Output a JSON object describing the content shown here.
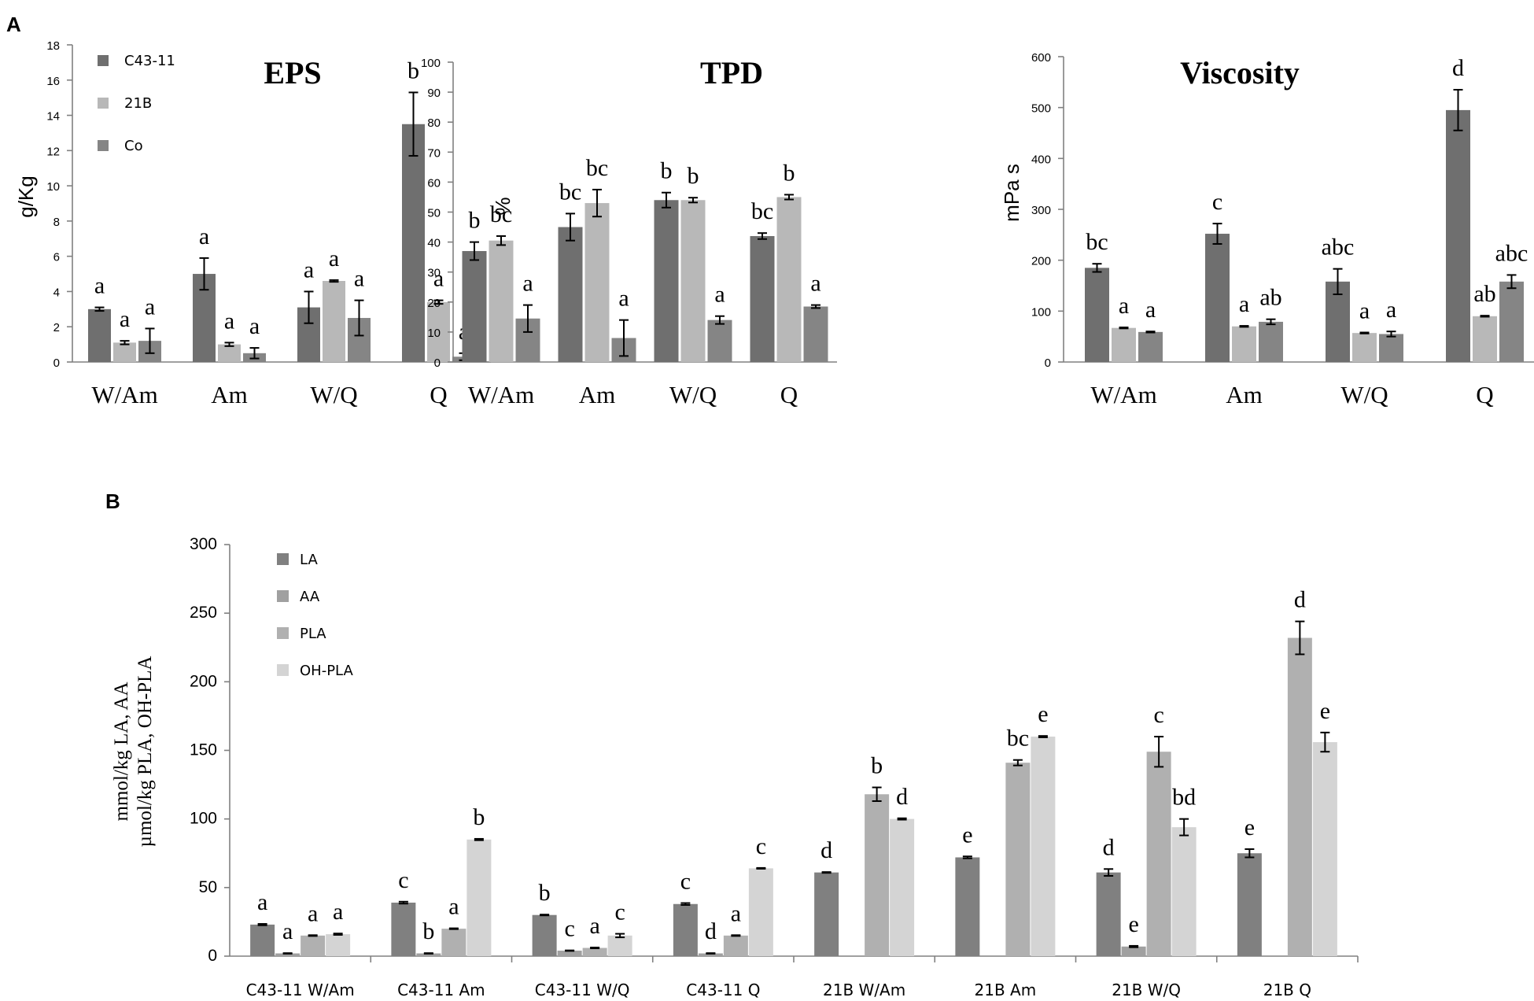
{
  "panel_labels": {
    "a": "A",
    "b": "B"
  },
  "colors": {
    "C43-11": "#6f6f6f",
    "21B": "#b8b8b8",
    "Co": "#858585",
    "LA": "#808080",
    "AA": "#a0a0a0",
    "PLA": "#b0b0b0",
    "OH-PLA": "#d4d4d4"
  },
  "chart_data": [
    {
      "type": "bar",
      "id": "eps",
      "title": "EPS",
      "ylabel": "g/Kg",
      "ylim": [
        0,
        18
      ],
      "yticks": [
        "0",
        "2",
        "4",
        "6",
        "8",
        "10",
        "12",
        "14",
        "16",
        "18"
      ],
      "categories": [
        "W/Am",
        "Am",
        "W/Q",
        "Q"
      ],
      "legend": [
        "C43-11",
        "21B",
        "Co"
      ],
      "series": [
        {
          "name": "C43-11",
          "values": [
            3.0,
            5.0,
            3.1,
            13.5
          ],
          "errors": [
            0.1,
            0.9,
            0.9,
            1.8
          ],
          "letters": [
            "a",
            "a",
            "a",
            "b"
          ]
        },
        {
          "name": "21B",
          "values": [
            1.1,
            1.0,
            4.6,
            3.4
          ],
          "errors": [
            0.1,
            0.1,
            0.05,
            0.1
          ],
          "letters": [
            "a",
            "a",
            "a",
            "a"
          ]
        },
        {
          "name": "Co",
          "values": [
            1.2,
            0.5,
            2.5,
            0.3
          ],
          "errors": [
            0.7,
            0.3,
            1.0,
            0.2
          ],
          "letters": [
            "a",
            "a",
            "a",
            "a"
          ]
        }
      ]
    },
    {
      "type": "bar",
      "id": "tpd",
      "title": "TPD",
      "ylabel": "%",
      "ylim": [
        0,
        100
      ],
      "yticks": [
        "0",
        "10",
        "20",
        "30",
        "40",
        "50",
        "60",
        "70",
        "80",
        "90",
        "100"
      ],
      "categories": [
        "W/Am",
        "Am",
        "W/Q",
        "Q"
      ],
      "series": [
        {
          "name": "C43-11",
          "values": [
            37,
            45,
            54,
            42
          ],
          "errors": [
            3,
            4.5,
            2.5,
            1
          ],
          "letters": [
            "b",
            "bc",
            "b",
            "bc"
          ]
        },
        {
          "name": "21B",
          "values": [
            40.5,
            53,
            54,
            55
          ],
          "errors": [
            1.5,
            4.5,
            0.8,
            0.8
          ],
          "letters": [
            "bc",
            "bc",
            "b",
            "b"
          ]
        },
        {
          "name": "Co",
          "values": [
            14.5,
            8,
            14,
            18.5
          ],
          "errors": [
            4.5,
            6,
            1.3,
            0.5
          ],
          "letters": [
            "a",
            "a",
            "a",
            "a"
          ]
        }
      ]
    },
    {
      "type": "bar",
      "id": "viscosity",
      "title": "Viscosity",
      "ylabel": "mPa s",
      "ylim": [
        0,
        600
      ],
      "yticks": [
        "0",
        "100",
        "200",
        "300",
        "400",
        "500",
        "600"
      ],
      "categories": [
        "W/Am",
        "Am",
        "W/Q",
        "Q"
      ],
      "series": [
        {
          "name": "C43-11",
          "values": [
            185,
            252,
            158,
            495
          ],
          "errors": [
            8,
            20,
            25,
            40
          ],
          "letters": [
            "bc",
            "c",
            "abc",
            "d"
          ]
        },
        {
          "name": "21B",
          "values": [
            67,
            70,
            57,
            90
          ],
          "errors": [
            1,
            1,
            1,
            1
          ],
          "letters": [
            "a",
            "a",
            "a",
            "ab"
          ]
        },
        {
          "name": "Co",
          "values": [
            59,
            79,
            55,
            158
          ],
          "errors": [
            1,
            5,
            5,
            13
          ],
          "letters": [
            "a",
            "ab",
            "a",
            "abc"
          ]
        }
      ]
    },
    {
      "type": "bar",
      "id": "acids",
      "ylabel_lines": [
        "mmol/kg LA, AA",
        "µmol/kg PLA, OH-PLA"
      ],
      "ylim": [
        0,
        300
      ],
      "yticks": [
        "0",
        "50",
        "100",
        "150",
        "200",
        "250",
        "300"
      ],
      "categories": [
        "C43-11 W/Am",
        "C43-11 Am",
        "C43-11 W/Q",
        "C43-11 Q",
        "21B W/Am",
        "21B Am",
        "21B W/Q",
        "21B Q"
      ],
      "legend": [
        "LA",
        "AA",
        "PLA",
        "OH-PLA"
      ],
      "series": [
        {
          "name": "LA",
          "values": [
            23,
            39,
            30,
            38,
            61,
            72,
            61,
            75
          ],
          "errors": [
            0.5,
            0.7,
            0.3,
            0.7,
            0.3,
            0.7,
            2.5,
            3
          ],
          "letters": [
            "a",
            "c",
            "b",
            "c",
            "d",
            "e",
            "d",
            "e"
          ]
        },
        {
          "name": "AA",
          "values": [
            2,
            2,
            4,
            2,
            null,
            null,
            7,
            null
          ],
          "errors": [
            0.2,
            0.2,
            0.2,
            0.2,
            null,
            null,
            0.5,
            null
          ],
          "letters": [
            "a",
            "b",
            "c",
            "d",
            "",
            "",
            "e",
            ""
          ]
        },
        {
          "name": "PLA",
          "values": [
            15,
            20,
            6,
            15,
            118,
            141,
            149,
            232
          ],
          "errors": [
            0.3,
            0.3,
            0.3,
            0.3,
            5,
            2,
            11,
            12
          ],
          "letters": [
            "a",
            "a",
            "a",
            "a",
            "b",
            "bc",
            "c",
            "d"
          ]
        },
        {
          "name": "OH-PLA",
          "values": [
            16,
            85,
            15,
            64,
            100,
            160,
            94,
            156
          ],
          "errors": [
            0.5,
            0.5,
            1.3,
            0.3,
            0.5,
            0.5,
            6,
            7
          ],
          "letters": [
            "a",
            "b",
            "c",
            "c",
            "d",
            "e",
            "bd",
            "e"
          ]
        }
      ]
    }
  ]
}
